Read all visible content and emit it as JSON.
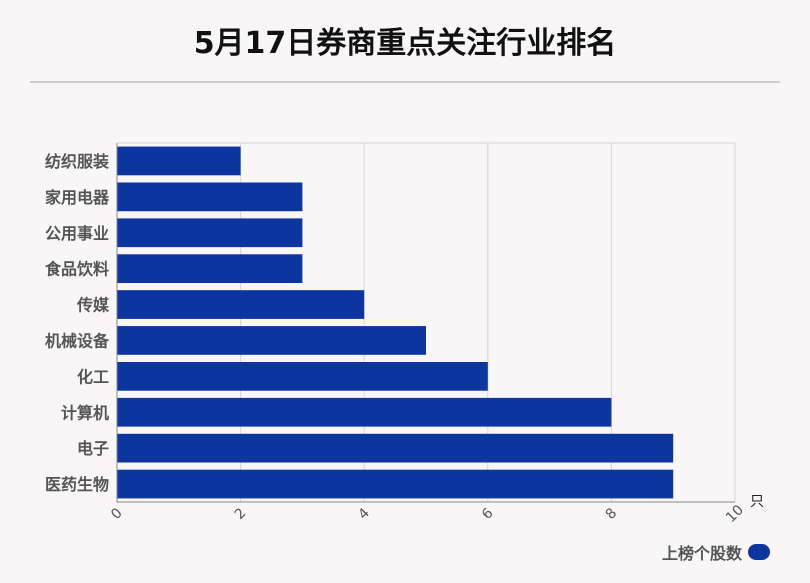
{
  "chart_data": {
    "type": "bar",
    "orientation": "horizontal",
    "title": "5月17日券商重点关注行业排名",
    "categories": [
      "纺织服装",
      "家用电器",
      "公用事业",
      "食品饮料",
      "传媒",
      "机械设备",
      "化工",
      "计算机",
      "电子",
      "医药生物"
    ],
    "series": [
      {
        "name": "上榜个股数",
        "values": [
          2,
          3,
          3,
          3,
          4,
          5,
          6,
          8,
          9,
          9
        ]
      }
    ],
    "xlim": [
      0,
      10
    ],
    "x_ticks": [
      "0",
      "2",
      "4",
      "6",
      "8",
      "10"
    ],
    "x_unit": "只",
    "grid": true,
    "legend_position": "bottom-right",
    "bar_color": "#0d35a0"
  }
}
